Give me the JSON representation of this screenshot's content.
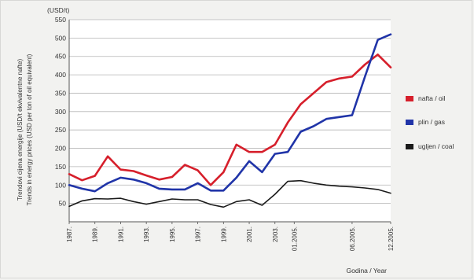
{
  "chart_data": {
    "type": "line",
    "y_unit": "(USD/t)",
    "ylabel_hr": "Trendovi cijena energije (USD/t ekvivalentne nafte)",
    "ylabel_en": "Trends in energy prices (USD per ton of oil equivalent)",
    "xlabel": "Godina / Year",
    "ylim": [
      0,
      550
    ],
    "y_ticks": [
      50,
      100,
      150,
      200,
      250,
      300,
      350,
      400,
      450,
      500,
      550
    ],
    "x_ticks": [
      "1987.",
      "1989.",
      "1991.",
      "1993.",
      "1995.",
      "1997.",
      "1999.",
      "2001.",
      "2003.",
      "01.2005.",
      "06.2005.",
      "12.2005."
    ],
    "x_tick_positions": [
      0,
      2,
      4,
      6,
      8,
      10,
      12,
      14,
      16,
      17.5,
      22,
      25
    ],
    "x_range": [
      0,
      25
    ],
    "grid": true,
    "legend_position": "right",
    "series": [
      {
        "name": "nafta / oil",
        "color": "#d61f2b",
        "points": [
          [
            0,
            130
          ],
          [
            1,
            113
          ],
          [
            2,
            125
          ],
          [
            3,
            178
          ],
          [
            4,
            142
          ],
          [
            5,
            138
          ],
          [
            6,
            126
          ],
          [
            7,
            115
          ],
          [
            8,
            122
          ],
          [
            9,
            155
          ],
          [
            10,
            140
          ],
          [
            11,
            100
          ],
          [
            12,
            135
          ],
          [
            13,
            210
          ],
          [
            14,
            190
          ],
          [
            15,
            190
          ],
          [
            16,
            210
          ],
          [
            17,
            270
          ],
          [
            18,
            320
          ],
          [
            19,
            350
          ],
          [
            20,
            380
          ],
          [
            21,
            390
          ],
          [
            22,
            395
          ],
          [
            23,
            428
          ],
          [
            24,
            455
          ],
          [
            25,
            420
          ]
        ]
      },
      {
        "name": "plin / gas",
        "color": "#2034a8",
        "points": [
          [
            0,
            100
          ],
          [
            1,
            90
          ],
          [
            2,
            83
          ],
          [
            3,
            105
          ],
          [
            4,
            120
          ],
          [
            5,
            115
          ],
          [
            6,
            105
          ],
          [
            7,
            90
          ],
          [
            8,
            88
          ],
          [
            9,
            88
          ],
          [
            10,
            105
          ],
          [
            11,
            85
          ],
          [
            12,
            85
          ],
          [
            13,
            120
          ],
          [
            14,
            165
          ],
          [
            15,
            135
          ],
          [
            16,
            185
          ],
          [
            17,
            190
          ],
          [
            18,
            245
          ],
          [
            19,
            260
          ],
          [
            20,
            280
          ],
          [
            21,
            285
          ],
          [
            22,
            290
          ],
          [
            23,
            395
          ],
          [
            24,
            495
          ],
          [
            25,
            510
          ]
        ]
      },
      {
        "name": "ugljen / coal",
        "color": "#1a1a1a",
        "points": [
          [
            0,
            42
          ],
          [
            1,
            57
          ],
          [
            2,
            63
          ],
          [
            3,
            62
          ],
          [
            4,
            64
          ],
          [
            5,
            55
          ],
          [
            6,
            48
          ],
          [
            7,
            55
          ],
          [
            8,
            62
          ],
          [
            9,
            60
          ],
          [
            10,
            60
          ],
          [
            11,
            47
          ],
          [
            12,
            40
          ],
          [
            13,
            55
          ],
          [
            14,
            60
          ],
          [
            15,
            45
          ],
          [
            16,
            75
          ],
          [
            17,
            110
          ],
          [
            18,
            112
          ],
          [
            19,
            105
          ],
          [
            20,
            100
          ],
          [
            21,
            97
          ],
          [
            22,
            95
          ],
          [
            23,
            92
          ],
          [
            24,
            88
          ],
          [
            25,
            78
          ]
        ]
      }
    ]
  }
}
